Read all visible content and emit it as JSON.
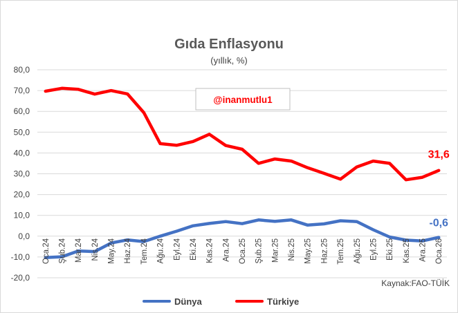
{
  "chart_data": {
    "type": "line",
    "title": "Gıda Enflasyonu",
    "subtitle": "(yıllık, %)",
    "source": "Kaynak:FAO-TÜİK",
    "annotation": "@inanmutlu1",
    "ylim": [
      -20,
      80
    ],
    "yticks": [
      "80,0",
      "70,0",
      "60,0",
      "50,0",
      "40,0",
      "30,0",
      "20,0",
      "10,0",
      "0,0",
      "-10,0",
      "-20,0"
    ],
    "ytick_values": [
      80,
      70,
      60,
      50,
      40,
      30,
      20,
      10,
      0,
      -10,
      -20
    ],
    "grid": true,
    "legend_position": "bottom",
    "categories": [
      "Oca.24",
      "Şub.24",
      "Mar.24",
      "Nis.24",
      "May.24",
      "Haz.24",
      "Tem.24",
      "Ağu.24",
      "Eyl.24",
      "Eki.24",
      "Kas.24",
      "Ara.24",
      "Oca.25",
      "Şub.25",
      "Mar.25",
      "Nis.25",
      "May.25",
      "Haz.25",
      "Tem.25",
      "Ağu.25",
      "Eyl.25",
      "Eki.25",
      "Kas.25",
      "Ara.25",
      "Oca.26"
    ],
    "xtick_labels": [
      "Oca.24",
      "Şub.24",
      "Mar.24",
      "Nis.24",
      "May.24",
      "Haz.24",
      "Tem.24",
      "Ağu.24",
      "Eyl.24",
      "Eki.24",
      "Kas.24",
      "Ara.24",
      "Oca.25",
      "Şub.25",
      "Mar.25",
      "Nis.25",
      "May.25",
      "Haz.25",
      "Tem.25",
      "Ağu.25",
      "Eyl.25",
      "Eki.25",
      "Kas.25",
      "Ara.25",
      "Oca.26"
    ],
    "series": [
      {
        "name": "Dünya",
        "color": "#4472c4",
        "end_label": "-0,6",
        "values": [
          -10.3,
          -9.9,
          -7.1,
          -7.4,
          -3.3,
          -1.8,
          -2.6,
          0.0,
          2.4,
          5.0,
          6.1,
          7.0,
          6.0,
          7.8,
          7.1,
          7.8,
          5.3,
          5.9,
          7.4,
          7.0,
          3.1,
          -0.4,
          -1.9,
          -2.3,
          -0.6
        ]
      },
      {
        "name": "Türkiye",
        "color": "#ff0000",
        "end_label": "31,6",
        "values": [
          69.7,
          71.1,
          70.6,
          68.3,
          70.0,
          68.4,
          59.4,
          44.5,
          43.7,
          45.5,
          49.0,
          43.6,
          41.8,
          35.0,
          37.1,
          36.1,
          32.9,
          30.2,
          27.4,
          33.3,
          36.1,
          35.0,
          27.1,
          28.3,
          31.6
        ]
      }
    ]
  }
}
